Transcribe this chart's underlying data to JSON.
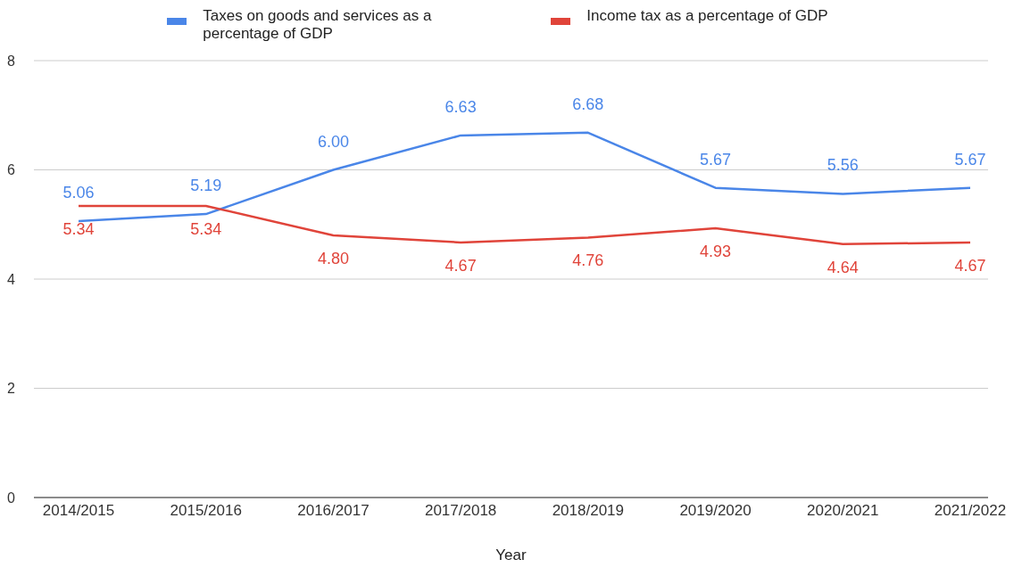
{
  "chart_data": {
    "type": "line",
    "xlabel": "Year",
    "categories": [
      "2014/2015",
      "2015/2016",
      "2016/2017",
      "2017/2018",
      "2018/2019",
      "2019/2020",
      "2020/2021",
      "2021/2022"
    ],
    "series": [
      {
        "name": "Taxes on goods and services as a percentage of GDP",
        "color": "#4a86e8",
        "values": [
          5.06,
          5.19,
          6.0,
          6.63,
          6.68,
          5.67,
          5.56,
          5.67
        ],
        "value_labels": [
          "5.06",
          "5.19",
          "6.00",
          "6.63",
          "6.68",
          "5.67",
          "5.56",
          "5.67"
        ]
      },
      {
        "name": "Income tax as a percentage of GDP",
        "color": "#e0443a",
        "values": [
          5.34,
          5.34,
          4.8,
          4.67,
          4.76,
          4.93,
          4.64,
          4.67
        ],
        "value_labels": [
          "5.34",
          "5.34",
          "4.80",
          "4.67",
          "4.76",
          "4.93",
          "4.64",
          "4.67"
        ]
      }
    ],
    "ylim": [
      0,
      8
    ],
    "yticks": [
      0,
      2,
      4,
      6,
      8
    ],
    "grid": "y",
    "legend": "top",
    "marker": "none",
    "line_style": "solid"
  }
}
